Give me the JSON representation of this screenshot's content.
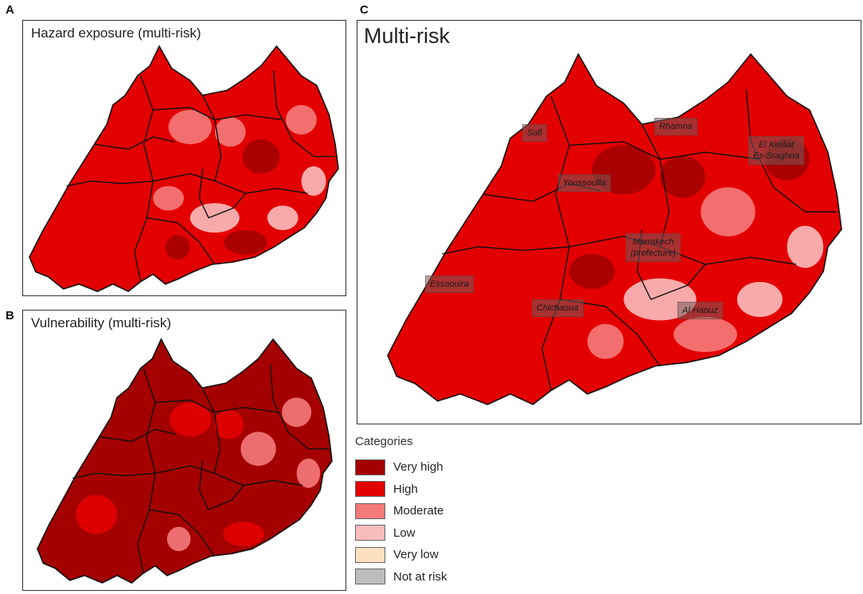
{
  "panels": {
    "a": {
      "letter": "A",
      "title": "Hazard exposure (multi-risk)"
    },
    "b": {
      "letter": "B",
      "title": "Vulnerability (multi-risk)"
    },
    "c": {
      "letter": "C",
      "title": "Multi-risk"
    }
  },
  "province_labels": {
    "safi": "Safi",
    "rhamna": "Rhamna",
    "el_kelaat": "El Kelâat\nEs-Sraghna",
    "youssoufia": "Youssoufia",
    "marrakech": "Marrakech\n(prefecture)",
    "essaouira": "Essaouira",
    "chichaoua": "Chichaoua",
    "al_haouz": "Al Haouz"
  },
  "legend": {
    "title": "Categories",
    "items": [
      {
        "label": "Very high",
        "color": "#a40000"
      },
      {
        "label": "High",
        "color": "#e30000"
      },
      {
        "label": "Moderate",
        "color": "#f47a7a"
      },
      {
        "label": "Low",
        "color": "#f9bcbc"
      },
      {
        "label": "Very low",
        "color": "#fce0c0"
      },
      {
        "label": "Not at risk",
        "color": "#bdbdbd"
      }
    ]
  },
  "dominant_colors": {
    "a": [
      "#e30000",
      "#f47a7a",
      "#a40000",
      "#f9bcbc"
    ],
    "b": [
      "#a40000",
      "#e30000",
      "#f47a7a"
    ],
    "c": [
      "#e30000",
      "#a40000",
      "#f47a7a",
      "#f9bcbc"
    ]
  }
}
